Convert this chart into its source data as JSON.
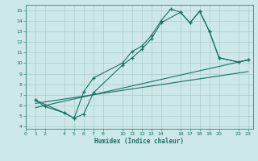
{
  "xlabel": "Humidex (Indice chaleur)",
  "bg_color": "#cde8e8",
  "grid_color": "#aacccc",
  "line_color": "#1a6e64",
  "line1_x": [
    1,
    2,
    4,
    5,
    6,
    7,
    10,
    11,
    12,
    13,
    14,
    15,
    16,
    17,
    18,
    19,
    20,
    22,
    23
  ],
  "line1_y": [
    6.5,
    5.9,
    5.3,
    4.8,
    7.3,
    8.6,
    10.0,
    11.1,
    11.6,
    12.6,
    14.0,
    15.1,
    14.8,
    13.8,
    14.9,
    13.0,
    10.5,
    10.1,
    10.3
  ],
  "line2_x": [
    1,
    4,
    5,
    6,
    7,
    10,
    11,
    12,
    13,
    14,
    16,
    17,
    18,
    19,
    20,
    22,
    23
  ],
  "line2_y": [
    6.5,
    5.3,
    4.8,
    5.2,
    7.2,
    9.8,
    10.5,
    11.3,
    12.3,
    13.8,
    14.8,
    13.8,
    14.9,
    13.0,
    10.5,
    10.1,
    10.3
  ],
  "line3_x": [
    1,
    23
  ],
  "line3_y": [
    6.2,
    9.2
  ],
  "line4_x": [
    1,
    23
  ],
  "line4_y": [
    5.8,
    10.3
  ],
  "xlim": [
    0,
    23.5
  ],
  "ylim": [
    3.8,
    15.5
  ],
  "xtick_positions": [
    0,
    1,
    2,
    4,
    5,
    6,
    7,
    8,
    10,
    11,
    12,
    13,
    14,
    16,
    17,
    18,
    19,
    20,
    22,
    23
  ],
  "xtick_labels": [
    "0",
    "1",
    "2",
    "4",
    "5",
    "6",
    "7",
    "8",
    "10",
    "11",
    "12",
    "13",
    "14",
    "16",
    "17",
    "18",
    "19",
    "20",
    "22",
    "23"
  ],
  "ytick_positions": [
    4,
    5,
    6,
    7,
    8,
    9,
    10,
    11,
    12,
    13,
    14,
    15
  ],
  "ytick_labels": [
    "4",
    "5",
    "6",
    "7",
    "8",
    "9",
    "10",
    "11",
    "12",
    "13",
    "14",
    "15"
  ]
}
